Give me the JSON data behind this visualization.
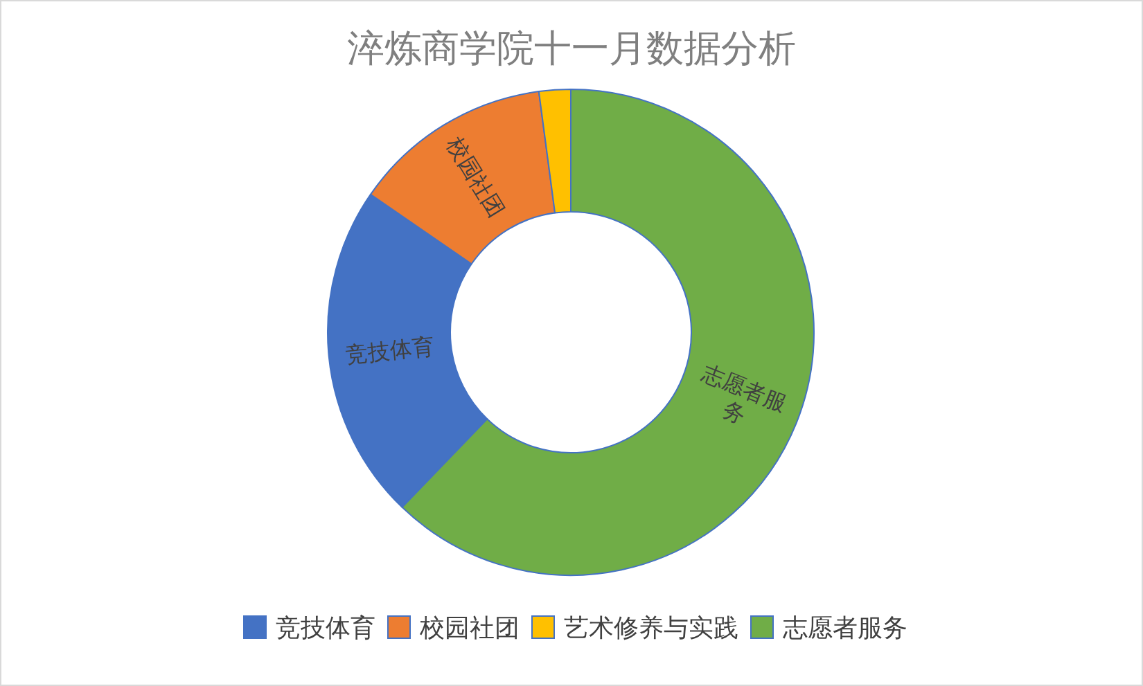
{
  "chart_data": {
    "type": "donut",
    "title": "淬炼商学院十一月数据分析",
    "categories": [
      "竞技体育",
      "校园社团",
      "艺术修养与实践",
      "志愿者服务"
    ],
    "values": [
      22.4,
      13.3,
      2.1,
      62.2
    ],
    "colors": [
      "#4472c4",
      "#ed7d31",
      "#ffc000",
      "#70ad47"
    ],
    "annotations": [
      {
        "text": "竞技体育",
        "x": "竞技体育"
      },
      {
        "text": "校园社团",
        "x": "校园社团"
      },
      {
        "text": "志愿者服务",
        "x": "志愿者服务"
      }
    ],
    "legend": "bottom"
  }
}
